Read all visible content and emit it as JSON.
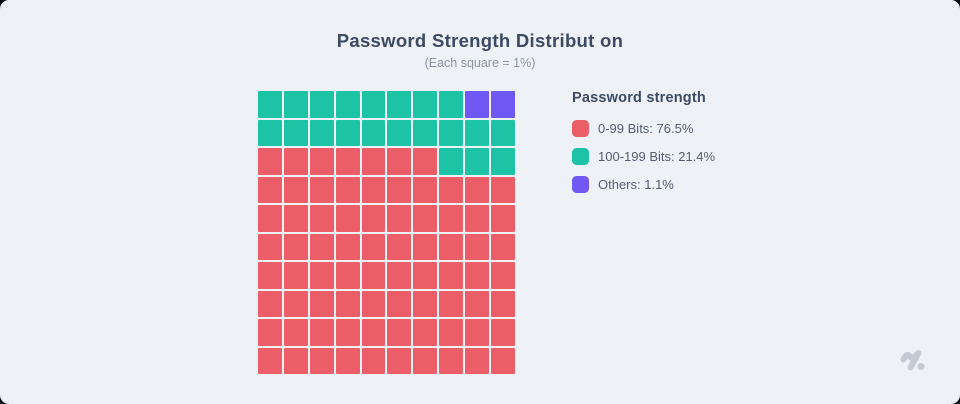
{
  "page": {
    "background": "#EEF1F5",
    "outer_background": "#0B0C0F"
  },
  "chart": {
    "title": "Password Strength Distribut on",
    "subtitle": "(Each square = 1%)"
  },
  "legend": {
    "title": "Password strength",
    "items": [
      {
        "name": "0-99 Bits",
        "label": "0-99 Bits: 76.5%",
        "color": "#EB5E67"
      },
      {
        "name": "100-199 Bits",
        "label": "100-199 Bits: 21.4%",
        "color": "#1CC3A5"
      },
      {
        "name": "Others",
        "label": "Others: 1.1%",
        "color": "#7157F3"
      }
    ]
  },
  "chart_data": {
    "type": "waffle",
    "title": "Password Strength Distribut on",
    "subtitle": "(Each square = 1%)",
    "grid": {
      "rows": 10,
      "cols": 10,
      "square_value_percent": 1,
      "fill_order": "bottom-left upward, left-to-right per row",
      "gap_color": "#EEF1F5"
    },
    "series": [
      {
        "name": "0-99 Bits",
        "percent": 76.5,
        "squares": 77,
        "color": "#EB5E67"
      },
      {
        "name": "100-199 Bits",
        "percent": 21.4,
        "squares": 21,
        "color": "#1CC3A5"
      },
      {
        "name": "Others",
        "percent": 1.1,
        "squares": 2,
        "color": "#7157F3"
      }
    ],
    "legend_position": "right",
    "legend_title": "Password strength"
  },
  "logo": {
    "color": "#C3CAD5"
  }
}
